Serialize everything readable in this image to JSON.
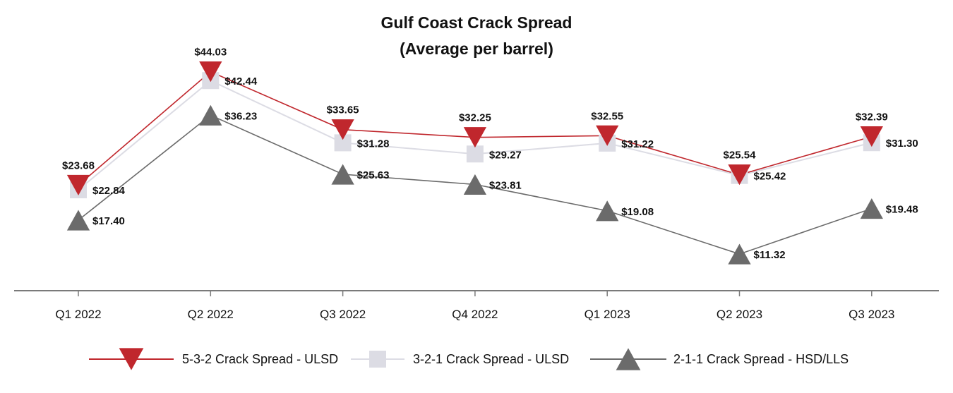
{
  "chart_data": {
    "type": "line",
    "title": "Gulf Coast Crack Spread",
    "subtitle": "(Average per barrel)",
    "categories": [
      "Q1 2022",
      "Q2 2022",
      "Q3 2022",
      "Q4 2022",
      "Q1 2023",
      "Q2 2023",
      "Q3 2023"
    ],
    "ylim": [
      0,
      50
    ],
    "grid": false,
    "legend_position": "bottom",
    "series": [
      {
        "name": "5-3-2 Crack Spread - ULSD",
        "marker": "triangle-down",
        "color": "#c0272d",
        "values": [
          23.68,
          44.03,
          33.65,
          32.25,
          32.55,
          25.54,
          32.39
        ],
        "labels": [
          "$23.68",
          "$44.03",
          "$33.65",
          "$32.25",
          "$32.55",
          "$25.54",
          "$32.39"
        ]
      },
      {
        "name": "3-2-1 Crack Spread - ULSD",
        "marker": "square",
        "color": "#dcdce4",
        "values": [
          22.84,
          42.44,
          31.28,
          29.27,
          31.22,
          25.42,
          31.3
        ],
        "labels": [
          "$22.84",
          "$42.44",
          "$31.28",
          "$29.27",
          "$31.22",
          "$25.42",
          "$31.30"
        ]
      },
      {
        "name": "2-1-1 Crack Spread - HSD/LLS",
        "marker": "triangle-up",
        "color": "#6b6b6b",
        "values": [
          17.4,
          36.23,
          25.63,
          23.81,
          19.08,
          11.32,
          19.48
        ],
        "labels": [
          "$17.40",
          "$36.23",
          "$25.63",
          "$23.81",
          "$19.08",
          "$11.32",
          "$19.48"
        ]
      }
    ]
  }
}
